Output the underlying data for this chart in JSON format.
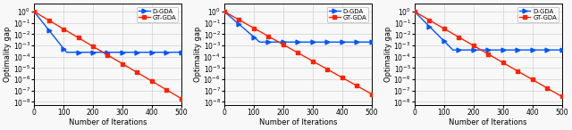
{
  "n_subplots": 3,
  "x_max": 500,
  "x_ticks": [
    0,
    100,
    200,
    300,
    400,
    500
  ],
  "xlabel": "Number of Iterations",
  "ylabel": "Optimality gap",
  "legend_labels": [
    "D-GDA",
    "GT-GDA"
  ],
  "blue_color": "#0055ff",
  "red_color": "#ff2200",
  "marker_blue": ">",
  "marker_red": "s",
  "subplots": [
    {
      "dgda_start": 1.0,
      "dgda_flat": 0.00025,
      "dgda_flat_start_iter": 110,
      "gtgda_start": 1.0,
      "gtgda_end": 2e-08,
      "ylim_bottom": 5e-09,
      "ylim_top": 5.0,
      "yticks": [
        1e-08,
        1e-07,
        1e-06,
        1e-05,
        0.0001,
        0.001,
        0.01,
        0.1,
        1.0
      ]
    },
    {
      "dgda_start": 1.0,
      "dgda_flat": 0.002,
      "dgda_flat_start_iter": 120,
      "gtgda_start": 1.0,
      "gtgda_end": 5e-08,
      "ylim_bottom": 5e-09,
      "ylim_top": 5.0,
      "yticks": [
        1e-08,
        1e-07,
        1e-06,
        1e-05,
        0.0001,
        0.001,
        0.01,
        0.1,
        1.0
      ]
    },
    {
      "dgda_start": 1.0,
      "dgda_flat": 0.0004,
      "dgda_flat_start_iter": 130,
      "gtgda_start": 1.0,
      "gtgda_end": 3e-08,
      "ylim_bottom": 5e-09,
      "ylim_top": 5.0,
      "yticks": [
        1e-08,
        1e-07,
        1e-06,
        1e-05,
        0.0001,
        0.001,
        0.01,
        0.1,
        1.0
      ]
    }
  ],
  "marker_every": 50,
  "linewidth": 1.0,
  "markersize": 3.5,
  "grid_color": "#d0d0d0",
  "background_color": "#f8f8f8",
  "tick_label_fontsize": 5.5,
  "axis_label_fontsize": 6.0,
  "legend_fontsize": 5.0,
  "figsize": [
    6.4,
    1.46
  ],
  "dpi": 100
}
